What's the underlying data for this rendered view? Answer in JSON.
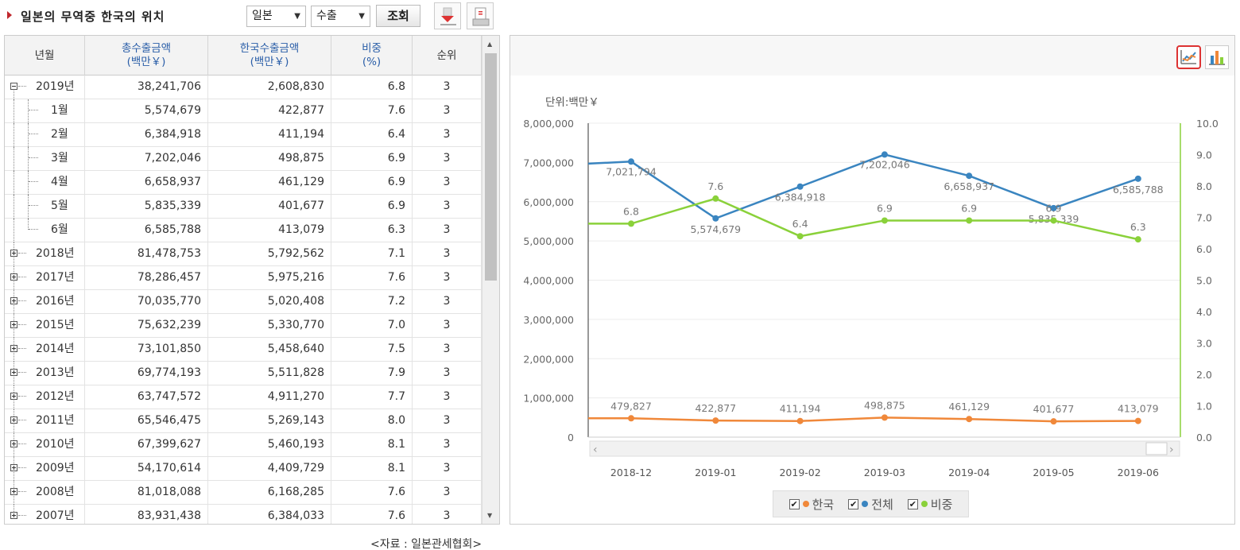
{
  "header": {
    "title": "일본의 무역중 한국의 위치",
    "country_select": "일본",
    "type_select": "수출",
    "search_label": "조회"
  },
  "table": {
    "columns": {
      "period": "년월",
      "total_l1": "총수출금액",
      "total_l2": "(백만￥)",
      "korea_l1": "한국수출금액",
      "korea_l2": "(백만￥)",
      "share_l1": "비중",
      "share_l2": "(%)",
      "rank": "순위"
    },
    "rows": [
      {
        "period": "2019년",
        "total": "38,241,706",
        "korea": "2,608,830",
        "share": "6.8",
        "rank": "3",
        "level": 0,
        "expanded": true
      },
      {
        "period": "1월",
        "total": "5,574,679",
        "korea": "422,877",
        "share": "7.6",
        "rank": "3",
        "level": 1
      },
      {
        "period": "2월",
        "total": "6,384,918",
        "korea": "411,194",
        "share": "6.4",
        "rank": "3",
        "level": 1
      },
      {
        "period": "3월",
        "total": "7,202,046",
        "korea": "498,875",
        "share": "6.9",
        "rank": "3",
        "level": 1
      },
      {
        "period": "4월",
        "total": "6,658,937",
        "korea": "461,129",
        "share": "6.9",
        "rank": "3",
        "level": 1
      },
      {
        "period": "5월",
        "total": "5,835,339",
        "korea": "401,677",
        "share": "6.9",
        "rank": "3",
        "level": 1
      },
      {
        "period": "6월",
        "total": "6,585,788",
        "korea": "413,079",
        "share": "6.3",
        "rank": "3",
        "level": 1,
        "last": true
      },
      {
        "period": "2018년",
        "total": "81,478,753",
        "korea": "5,792,562",
        "share": "7.1",
        "rank": "3",
        "level": 0
      },
      {
        "period": "2017년",
        "total": "78,286,457",
        "korea": "5,975,216",
        "share": "7.6",
        "rank": "3",
        "level": 0
      },
      {
        "period": "2016년",
        "total": "70,035,770",
        "korea": "5,020,408",
        "share": "7.2",
        "rank": "3",
        "level": 0
      },
      {
        "period": "2015년",
        "total": "75,632,239",
        "korea": "5,330,770",
        "share": "7.0",
        "rank": "3",
        "level": 0
      },
      {
        "period": "2014년",
        "total": "73,101,850",
        "korea": "5,458,640",
        "share": "7.5",
        "rank": "3",
        "level": 0
      },
      {
        "period": "2013년",
        "total": "69,774,193",
        "korea": "5,511,828",
        "share": "7.9",
        "rank": "3",
        "level": 0
      },
      {
        "period": "2012년",
        "total": "63,747,572",
        "korea": "4,911,270",
        "share": "7.7",
        "rank": "3",
        "level": 0
      },
      {
        "period": "2011년",
        "total": "65,546,475",
        "korea": "5,269,143",
        "share": "8.0",
        "rank": "3",
        "level": 0
      },
      {
        "period": "2010년",
        "total": "67,399,627",
        "korea": "5,460,193",
        "share": "8.1",
        "rank": "3",
        "level": 0
      },
      {
        "period": "2009년",
        "total": "54,170,614",
        "korea": "4,409,729",
        "share": "8.1",
        "rank": "3",
        "level": 0
      },
      {
        "period": "2008년",
        "total": "81,018,088",
        "korea": "6,168,285",
        "share": "7.6",
        "rank": "3",
        "level": 0
      },
      {
        "period": "2007년",
        "total": "83,931,438",
        "korea": "6,384,033",
        "share": "7.6",
        "rank": "3",
        "level": 0
      }
    ]
  },
  "source_note": "<자료 : 일본관세협회>",
  "chart_data": {
    "type": "line",
    "unit_label": "단위:백만￥",
    "x": [
      "2018-12",
      "2019-01",
      "2019-02",
      "2019-03",
      "2019-04",
      "2019-05",
      "2019-06"
    ],
    "series": [
      {
        "name": "한국",
        "axis": "left",
        "color": "#f0883a",
        "values": [
          479827,
          422877,
          411194,
          498875,
          461129,
          401677,
          413079
        ],
        "labels": [
          "479,827",
          "422,877",
          "411,194",
          "498,875",
          "461,129",
          "401,677",
          "413,079"
        ]
      },
      {
        "name": "전체",
        "axis": "left",
        "color": "#3a85c0",
        "values": [
          7021794,
          5574679,
          6384918,
          7202046,
          6658937,
          5835339,
          6585788
        ],
        "labels": [
          "7,021,794",
          "5,574,679",
          "6,384,918",
          "7,202,046",
          "6,658,937",
          "5,835,339",
          "6,585,788"
        ]
      },
      {
        "name": "비중",
        "axis": "right",
        "color": "#8ad13a",
        "values": [
          6.8,
          7.6,
          6.4,
          6.9,
          6.9,
          6.9,
          6.3
        ],
        "labels": [
          "6.8",
          "7.6",
          "6.4",
          "6.9",
          "6.9",
          "6.9",
          "6.3"
        ]
      }
    ],
    "y_left": {
      "min": 0,
      "max": 8000000,
      "ticks": [
        "0",
        "1,000,000",
        "2,000,000",
        "3,000,000",
        "4,000,000",
        "5,000,000",
        "6,000,000",
        "7,000,000",
        "8,000,000"
      ]
    },
    "y_right": {
      "min": 0,
      "max": 10,
      "ticks": [
        "0.0",
        "1.0",
        "2.0",
        "3.0",
        "4.0",
        "5.0",
        "6.0",
        "7.0",
        "8.0",
        "9.0",
        "10.0"
      ]
    },
    "grid": true,
    "legend": "bottom"
  },
  "icons": {
    "download": "download-icon",
    "print": "print-icon",
    "line_chart": "line-chart-icon",
    "bar_chart": "bar-chart-icon"
  }
}
